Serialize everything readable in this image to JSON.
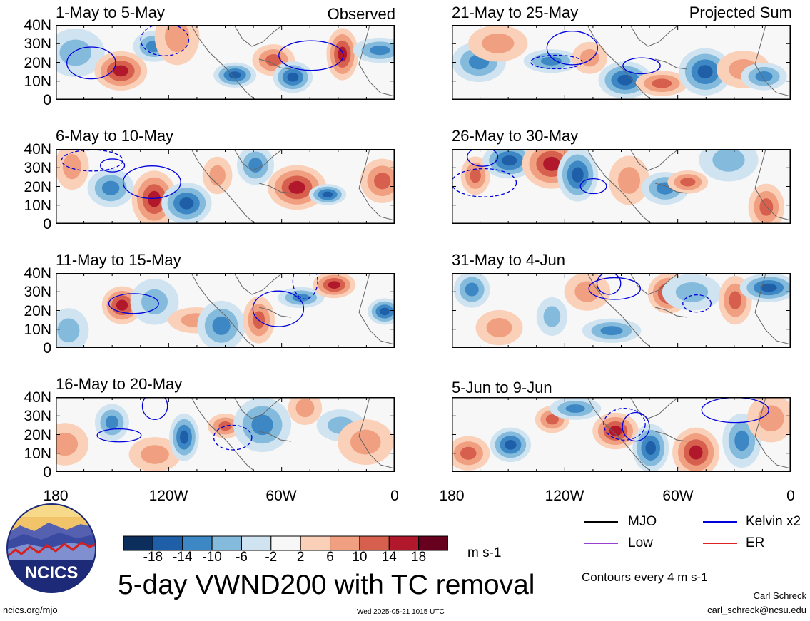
{
  "panels": [
    {
      "title": "1-May to 5-May",
      "corner": "Observed"
    },
    {
      "title": "6-May to 10-May",
      "corner": ""
    },
    {
      "title": "11-May to 15-May",
      "corner": ""
    },
    {
      "title": "16-May to 20-May",
      "corner": ""
    },
    {
      "title": "21-May to 25-May",
      "corner": "Projected Sum"
    },
    {
      "title": "26-May to 30-May",
      "corner": ""
    },
    {
      "title": "31-May to 4-Jun",
      "corner": ""
    },
    {
      "title": "5-Jun to 9-Jun",
      "corner": ""
    }
  ],
  "lat_labels": [
    "40N",
    "30N",
    "20N",
    "10N",
    "0"
  ],
  "lon_labels": [
    "180",
    "120W",
    "60W",
    "0"
  ],
  "colorbar": {
    "labels": [
      "-18",
      "-14",
      "-10",
      "-6",
      "-2",
      "2",
      "6",
      "10",
      "14",
      "18"
    ],
    "colors": [
      "#0b2e5c",
      "#1f5fa8",
      "#3d88c4",
      "#84bbdd",
      "#cfe3f0",
      "#f7f7f7",
      "#fbd0b9",
      "#f0a080",
      "#d6604d",
      "#b2182b",
      "#67001f"
    ],
    "units": "m s-1"
  },
  "legend": [
    {
      "label": "MJO",
      "color": "#000000"
    },
    {
      "label": "Kelvin x2",
      "color": "#0000dd"
    },
    {
      "label": "Low",
      "color": "#9a40d0"
    },
    {
      "label": "ER",
      "color": "#dd2222"
    }
  ],
  "main_title": "5-day VWND200 with TC removal",
  "contour_note": "Contours every 4 m s-1",
  "logo_text": "NCICS",
  "footer": {
    "url": "ncics.org/mjo",
    "timestamp": "Wed 2025-05-21 1015 UTC",
    "author": "Carl Schreck",
    "email": "carl_schreck@ncsu.edu"
  }
}
